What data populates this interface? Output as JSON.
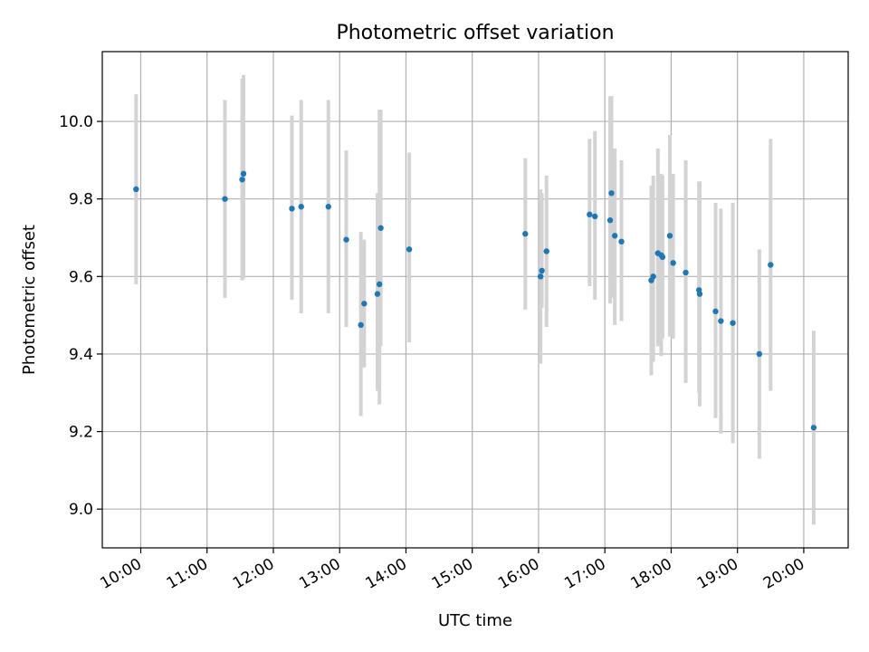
{
  "chart_data": {
    "type": "scatter",
    "title": "Photometric offset variation",
    "xlabel": "UTC time",
    "ylabel": "Photometric offset",
    "xlim": [
      9.42,
      20.67
    ],
    "ylim": [
      8.9,
      10.18
    ],
    "x_ticks": [
      10,
      11,
      12,
      13,
      14,
      15,
      16,
      17,
      18,
      19,
      20
    ],
    "x_tick_labels": [
      "10:00",
      "11:00",
      "12:00",
      "13:00",
      "14:00",
      "15:00",
      "16:00",
      "17:00",
      "18:00",
      "19:00",
      "20:00"
    ],
    "y_ticks": [
      9.0,
      9.2,
      9.4,
      9.6,
      9.8,
      10.0
    ],
    "y_tick_labels": [
      "9.0",
      "9.2",
      "9.4",
      "9.6",
      "9.8",
      "10.0"
    ],
    "grid": true,
    "colors": {
      "points": "#1f77b4",
      "errorbars": "#d3d3d3",
      "grid": "#b0b0b0"
    },
    "series": [
      {
        "name": "offset",
        "x": [
          9.93,
          11.27,
          11.53,
          11.55,
          12.28,
          12.42,
          12.83,
          13.1,
          13.32,
          13.37,
          13.57,
          13.6,
          13.62,
          14.05,
          15.8,
          16.03,
          16.05,
          16.12,
          16.77,
          16.85,
          17.08,
          17.1,
          17.15,
          17.25,
          17.7,
          17.73,
          17.8,
          17.85,
          17.87,
          17.98,
          18.03,
          18.22,
          18.42,
          18.43,
          18.67,
          18.75,
          18.93,
          19.33,
          19.5,
          20.15
        ],
        "y": [
          9.825,
          9.8,
          9.85,
          9.865,
          9.775,
          9.78,
          9.78,
          9.695,
          9.475,
          9.53,
          9.555,
          9.58,
          9.725,
          9.67,
          9.71,
          9.6,
          9.615,
          9.665,
          9.76,
          9.755,
          9.745,
          9.815,
          9.705,
          9.69,
          9.59,
          9.6,
          9.66,
          9.655,
          9.65,
          9.705,
          9.635,
          9.61,
          9.565,
          9.555,
          9.51,
          9.485,
          9.48,
          9.4,
          9.63,
          9.21
        ],
        "err_low": [
          9.58,
          9.545,
          9.59,
          9.595,
          9.54,
          9.505,
          9.505,
          9.47,
          9.24,
          9.365,
          9.305,
          9.27,
          9.42,
          9.43,
          9.515,
          9.375,
          9.52,
          9.47,
          9.575,
          9.54,
          9.53,
          9.545,
          9.475,
          9.485,
          9.345,
          9.38,
          9.42,
          9.395,
          9.44,
          9.445,
          9.44,
          9.325,
          9.3,
          9.265,
          9.235,
          9.195,
          9.17,
          9.13,
          9.305,
          8.96
        ],
        "err_high": [
          10.07,
          10.055,
          10.11,
          10.12,
          10.015,
          10.055,
          10.055,
          9.925,
          9.715,
          9.695,
          9.815,
          10.03,
          10.03,
          9.92,
          9.905,
          9.825,
          9.815,
          9.86,
          9.955,
          9.975,
          10.065,
          10.065,
          9.93,
          9.9,
          9.835,
          9.86,
          9.93,
          9.865,
          9.86,
          9.965,
          9.865,
          9.9,
          9.845,
          9.845,
          9.79,
          9.775,
          9.79,
          9.67,
          9.955,
          9.46
        ]
      }
    ]
  }
}
